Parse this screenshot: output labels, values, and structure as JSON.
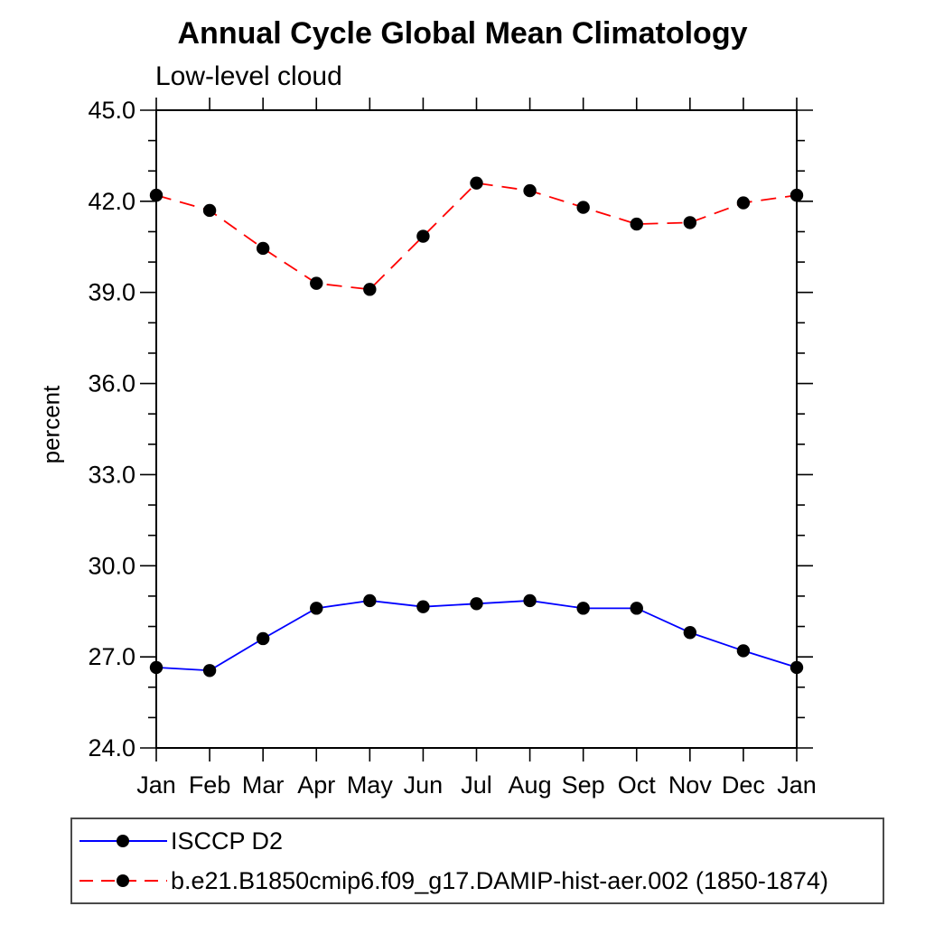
{
  "page": {
    "background_color": "#ffffff",
    "axis_color": "#000000"
  },
  "chart_data": {
    "type": "line",
    "title": "Annual Cycle Global Mean Climatology",
    "subtitle": "Low-level cloud",
    "xlabel": "",
    "ylabel": "percent",
    "categories": [
      "Jan",
      "Feb",
      "Mar",
      "Apr",
      "May",
      "Jun",
      "Jul",
      "Aug",
      "Sep",
      "Oct",
      "Nov",
      "Dec",
      "Jan"
    ],
    "ylim": [
      24.0,
      45.0
    ],
    "ytick_major_interval": 3.0,
    "ytick_minor_interval": 1.0,
    "ytick_labels": [
      "45.0",
      "42.0",
      "39.0",
      "36.0",
      "33.0",
      "30.0",
      "27.0",
      "24.0"
    ],
    "grid": false,
    "legend_position": "bottom-left",
    "series": [
      {
        "name": "ISCCP D2",
        "color": "#0000ff",
        "line_style": "solid",
        "marker": "filled-circle",
        "marker_color": "#000000",
        "values": [
          26.65,
          26.55,
          27.6,
          28.6,
          28.85,
          28.65,
          28.75,
          28.85,
          28.6,
          28.6,
          27.8,
          27.2,
          26.65
        ]
      },
      {
        "name": "b.e21.B1850cmip6.f09_g17.DAMIP-hist-aer.002 (1850-1874)",
        "color": "#ff0000",
        "line_style": "dashed",
        "marker": "filled-circle",
        "marker_color": "#000000",
        "values": [
          42.2,
          41.7,
          40.45,
          39.3,
          39.1,
          40.85,
          42.6,
          42.35,
          41.8,
          41.25,
          41.3,
          41.95,
          42.2
        ]
      }
    ]
  }
}
